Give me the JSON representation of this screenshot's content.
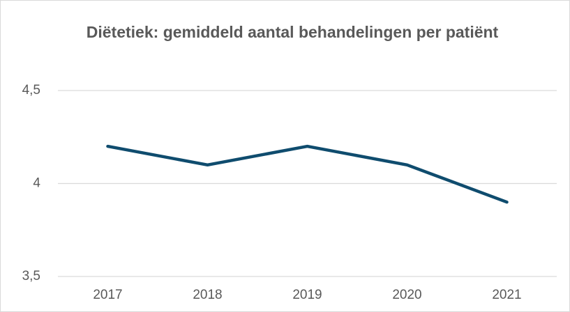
{
  "chart_data": {
    "type": "line",
    "title": "Diëtetiek: gemiddeld aantal behandelingen per patiënt",
    "categories": [
      "2017",
      "2018",
      "2019",
      "2020",
      "2021"
    ],
    "values": [
      4.2,
      4.1,
      4.2,
      4.1,
      3.9
    ],
    "color": "#0f4c6e",
    "ylim": [
      3.5,
      4.5
    ],
    "yticks": [
      {
        "value": 3.5,
        "label": "3,5"
      },
      4,
      {
        "value": 4.5,
        "label": "4,5"
      }
    ],
    "grid": true
  }
}
